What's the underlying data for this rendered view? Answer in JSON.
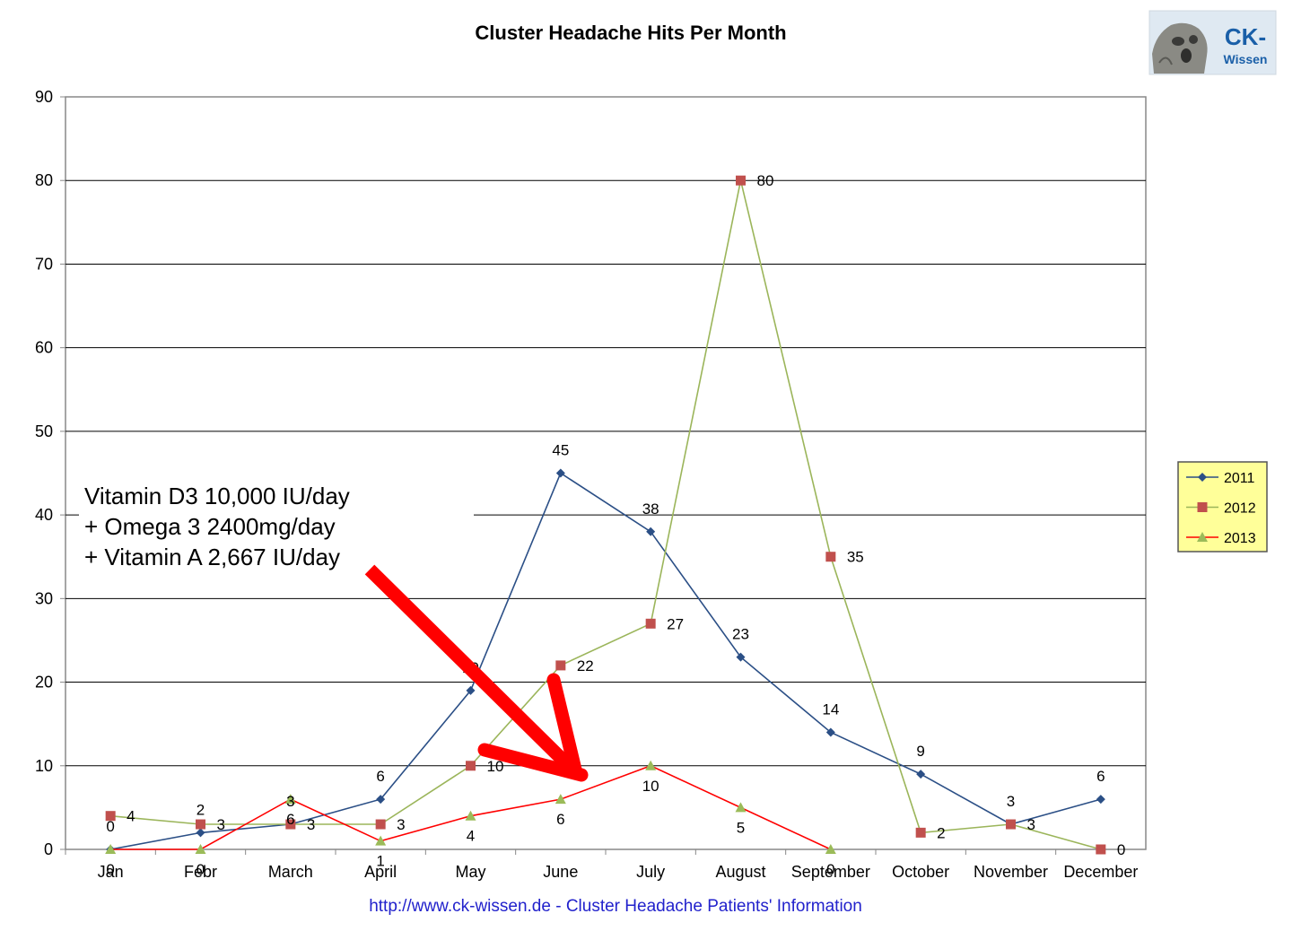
{
  "chart_data": {
    "type": "line",
    "title": "Cluster Headache Hits Per Month",
    "categories": [
      "Jan",
      "Febr",
      "March",
      "April",
      "May",
      "June",
      "July",
      "August",
      "September",
      "October",
      "November",
      "December"
    ],
    "ylim": [
      0,
      90
    ],
    "yticks": [
      0,
      10,
      20,
      30,
      40,
      50,
      60,
      70,
      80,
      90
    ],
    "grid": true,
    "legend_position": "right",
    "series": [
      {
        "name": "2011",
        "color": "#2b4f86",
        "marker": "diamond",
        "values": [
          0,
          2,
          3,
          6,
          19,
          45,
          38,
          23,
          14,
          9,
          3,
          6
        ]
      },
      {
        "name": "2012",
        "color": "#9bb55a",
        "marker": "square",
        "marker_color": "#c0504d",
        "values": [
          4,
          3,
          3,
          3,
          10,
          22,
          27,
          80,
          35,
          2,
          3,
          0
        ]
      },
      {
        "name": "2013",
        "color": "#ff0000",
        "marker": "triangle",
        "marker_color": "#9bbb59",
        "values": [
          0,
          0,
          6,
          1,
          4,
          6,
          10,
          5,
          0,
          null,
          null,
          null
        ]
      }
    ]
  },
  "annotation": {
    "lines": [
      "Vitamin D3 10,000 IU/day",
      "+ Omega 3 2400mg/day",
      "+ Vitamin A 2,667 IU/day"
    ],
    "arrow_color": "#ff0000"
  },
  "logo": {
    "line1": "CK-",
    "line2": "Wissen"
  },
  "footer": "http://www.ck-wissen.de - Cluster Headache Patients' Information"
}
